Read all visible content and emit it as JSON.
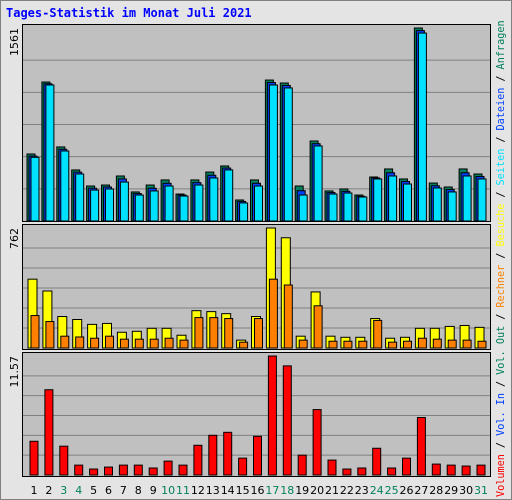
{
  "chart_data": [
    {
      "type": "bar",
      "title": "Tages-Statistik im Monat Juli 2021",
      "ylim": [
        0,
        1561
      ],
      "yticks": [
        1561
      ],
      "series": [
        {
          "name": "Anfragen",
          "color": "#00805c",
          "values": [
            542,
            1124,
            599,
            413,
            283,
            291,
            364,
            235,
            291,
            332,
            218,
            332,
            396,
            445,
            170,
            332,
            1140,
            1116,
            283,
            647,
            243,
            259,
            210,
            356,
            421,
            340,
            1561,
            307,
            275,
            421,
            380
          ]
        },
        {
          "name": "Dateien",
          "color": "#0040ff",
          "values": [
            525,
            1110,
            580,
            395,
            265,
            275,
            340,
            222,
            265,
            305,
            210,
            310,
            370,
            428,
            158,
            305,
            1120,
            1096,
            245,
            625,
            230,
            240,
            200,
            348,
            390,
            320,
            1540,
            285,
            255,
            390,
            360
          ]
        },
        {
          "name": "Seiten",
          "color": "#00e0ff",
          "values": [
            515,
            1100,
            566,
            380,
            250,
            259,
            315,
            210,
            243,
            283,
            202,
            291,
            348,
            413,
            146,
            283,
            1100,
            1076,
            210,
            607,
            218,
            226,
            194,
            340,
            364,
            299,
            1520,
            267,
            235,
            364,
            340
          ]
        }
      ]
    },
    {
      "type": "bar",
      "ylim": [
        0,
        762
      ],
      "yticks": [
        762
      ],
      "series": [
        {
          "name": "Besuche",
          "color": "#ffff00",
          "values": [
            437,
            362,
            200,
            181,
            150,
            156,
            100,
            106,
            125,
            125,
            81,
            237,
            231,
            218,
            50,
            200,
            762,
            700,
            75,
            356,
            75,
            68,
            68,
            187,
            62,
            68,
            125,
            125,
            137,
            143,
            131
          ]
        },
        {
          "name": "Rechner",
          "color": "#ff8000",
          "values": [
            206,
            168,
            75,
            70,
            62,
            75,
            56,
            56,
            56,
            62,
            50,
            193,
            193,
            187,
            37,
            187,
            437,
            400,
            50,
            268,
            43,
            43,
            43,
            175,
            37,
            43,
            62,
            56,
            50,
            50,
            43
          ]
        }
      ]
    },
    {
      "type": "bar",
      "ylim": [
        0,
        11.57
      ],
      "yticks": [
        11.57
      ],
      "categories": [
        "1",
        "2",
        "3",
        "4",
        "5",
        "6",
        "7",
        "8",
        "9",
        "10",
        "11",
        "12",
        "13",
        "14",
        "15",
        "16",
        "17",
        "18",
        "19",
        "20",
        "21",
        "22",
        "23",
        "24",
        "25",
        "26",
        "27",
        "28",
        "29",
        "30",
        "31"
      ],
      "highlight": [
        2,
        3,
        9,
        10,
        16,
        17,
        23,
        24,
        30
      ],
      "highlight_color": "#00805c",
      "series": [
        {
          "name": "Volumen",
          "color": "#ff0000",
          "values": [
            3.28,
            8.29,
            2.8,
            0.96,
            0.58,
            0.77,
            0.96,
            0.96,
            0.68,
            1.35,
            0.96,
            2.89,
            3.86,
            4.15,
            1.64,
            3.76,
            11.57,
            10.61,
            1.93,
            6.36,
            1.45,
            0.58,
            0.68,
            2.6,
            0.68,
            1.64,
            5.59,
            1.06,
            0.96,
            0.87,
            0.96
          ]
        }
      ],
      "legend_extra": [
        {
          "name": "Vol. In",
          "color": "#0040ff"
        },
        {
          "name": "Vol. Out",
          "color": "#00805c"
        }
      ],
      "legend_separator": "/"
    }
  ]
}
